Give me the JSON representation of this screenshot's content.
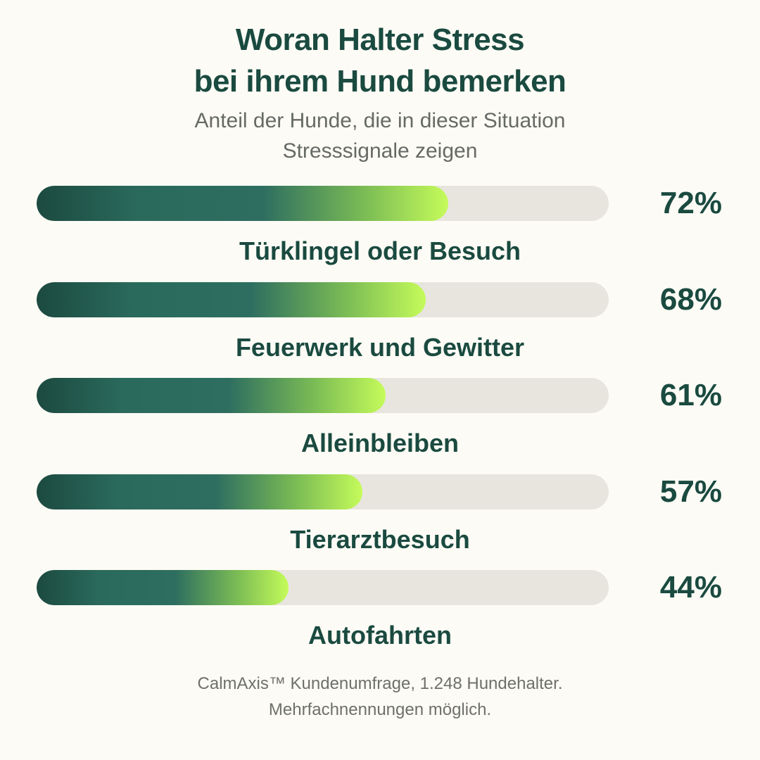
{
  "header": {
    "title_line1": "Woran Halter Stress",
    "title_line2": "bei ihrem Hund bemerken",
    "subtitle_line1": "Anteil der Hunde, die in dieser Situation",
    "subtitle_line2": "Stresssignale zeigen"
  },
  "chart_data": {
    "type": "bar",
    "orientation": "horizontal",
    "title": "Woran Halter Stress bei ihrem Hund bemerken",
    "subtitle": "Anteil der Hunde, die in dieser Situation Stresssignale zeigen",
    "categories": [
      "Türklingel oder Besuch",
      "Feuerwerk und Gewitter",
      "Alleinbleiben",
      "Tierarztbesuch",
      "Autofahrten"
    ],
    "values": [
      72,
      68,
      61,
      57,
      44
    ],
    "value_labels": [
      "72%",
      "68%",
      "61%",
      "57%",
      "44%"
    ],
    "unit": "%",
    "xlim": [
      0,
      100
    ],
    "grid": false,
    "legend": "none"
  },
  "footer": {
    "note_line1": "CalmAxis™ Kundenumfrage, 1.248 Hundehalter.",
    "note_line2": "Mehrfachnennungen möglich."
  },
  "colors": {
    "background": "#fdfbf5",
    "text_primary": "#1a4a40",
    "text_secondary": "#666a66",
    "track": "#e8e5df",
    "gradient_start": "#1c4a40",
    "gradient_mid": "#2e6e60",
    "gradient_end": "#c5fb5a"
  }
}
